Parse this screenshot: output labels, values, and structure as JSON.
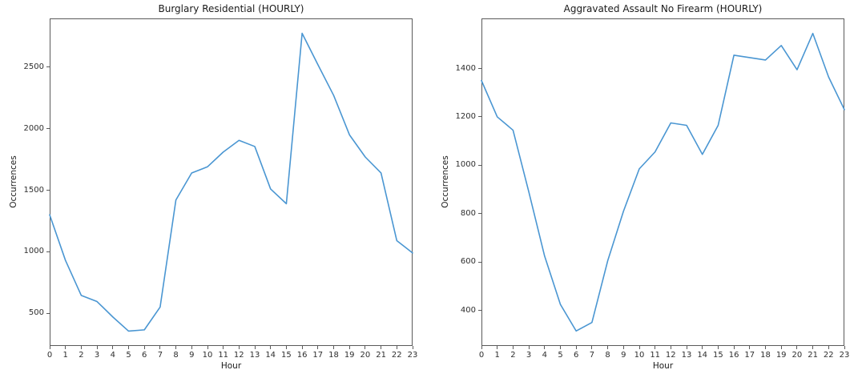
{
  "figure": {
    "background": "#ffffff",
    "axis_color": "#5a5a5a",
    "text_color": "#1a1a1a"
  },
  "chart_data": [
    {
      "type": "line",
      "title": "Burglary Residential (HOURLY)",
      "xlabel": "Hour",
      "ylabel": "Occurrences",
      "x": [
        0,
        1,
        2,
        3,
        4,
        5,
        6,
        7,
        8,
        9,
        10,
        11,
        12,
        13,
        14,
        15,
        16,
        17,
        18,
        19,
        20,
        21,
        22,
        23
      ],
      "values": [
        1300,
        930,
        645,
        595,
        470,
        355,
        365,
        550,
        1420,
        1640,
        1690,
        1810,
        1905,
        1855,
        1510,
        1390,
        2775,
        2520,
        2270,
        1950,
        1770,
        1640,
        1090,
        990
      ],
      "xticks": [
        0,
        1,
        2,
        3,
        4,
        5,
        6,
        7,
        8,
        9,
        10,
        11,
        12,
        13,
        14,
        15,
        16,
        17,
        18,
        19,
        20,
        21,
        22,
        23
      ],
      "yticks": [
        500,
        1000,
        1500,
        2000,
        2500
      ],
      "xlim": [
        0,
        23
      ],
      "ylim": [
        234,
        2896
      ],
      "grid": false,
      "legend": null,
      "line_color": "#4a96d2"
    },
    {
      "type": "line",
      "title": "Aggravated Assault No Firearm (HOURLY)",
      "xlabel": "Hour",
      "ylabel": "Occurrences",
      "x": [
        0,
        1,
        2,
        3,
        4,
        5,
        6,
        7,
        8,
        9,
        10,
        11,
        12,
        13,
        14,
        15,
        16,
        17,
        18,
        19,
        20,
        21,
        22,
        23
      ],
      "values": [
        1350,
        1200,
        1145,
        890,
        625,
        425,
        315,
        350,
        605,
        810,
        985,
        1055,
        1175,
        1165,
        1045,
        1165,
        1455,
        1445,
        1435,
        1495,
        1395,
        1545,
        1365,
        1230
      ],
      "xticks": [
        0,
        1,
        2,
        3,
        4,
        5,
        6,
        7,
        8,
        9,
        10,
        11,
        12,
        13,
        14,
        15,
        16,
        17,
        18,
        19,
        20,
        21,
        22,
        23
      ],
      "yticks": [
        400,
        600,
        800,
        1000,
        1200,
        1400
      ],
      "xlim": [
        0,
        23
      ],
      "ylim": [
        253,
        1607
      ],
      "grid": false,
      "legend": null,
      "line_color": "#4a96d2"
    }
  ]
}
